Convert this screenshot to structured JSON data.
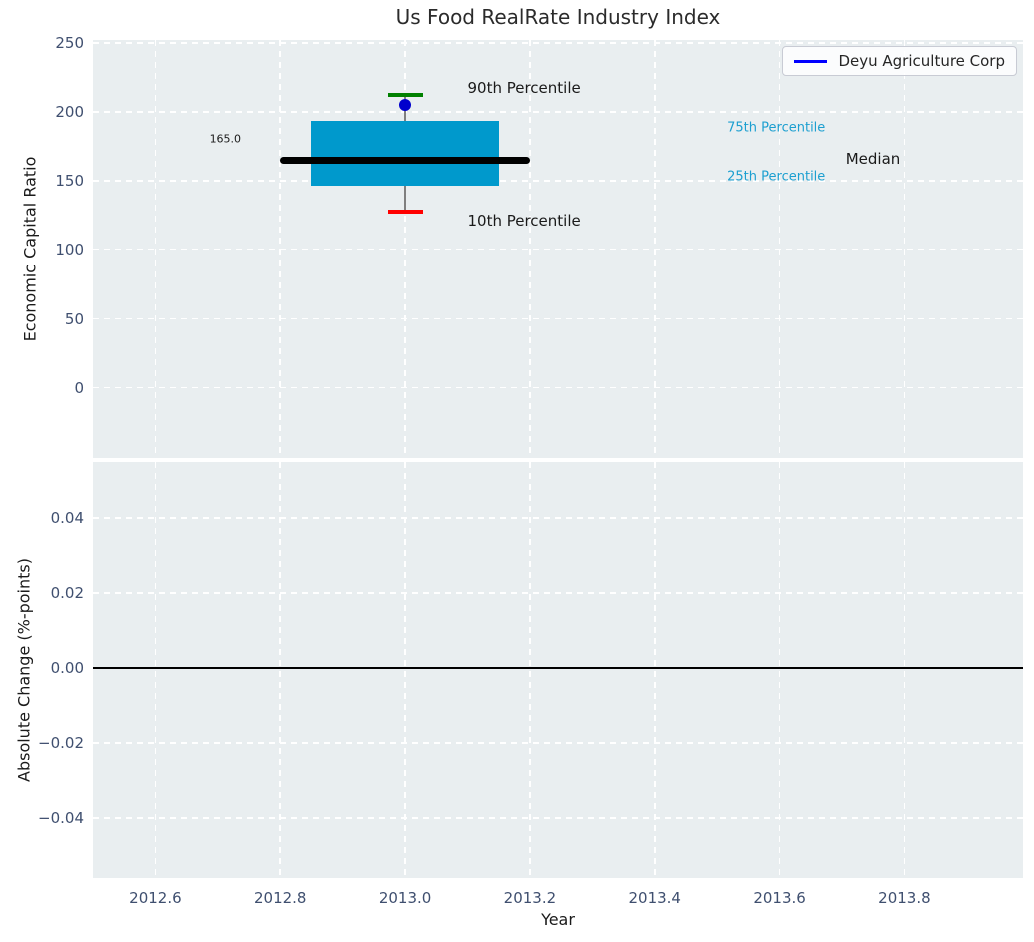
{
  "title": "Us Food RealRate Industry Index",
  "legend": {
    "label": "Deyu Agriculture Corp",
    "line_color": "#0000ff"
  },
  "styles": {
    "axes_bg": "#e9eef0",
    "grid_color": "#ffffff",
    "tick_color": "#3f4f6f",
    "box_fill": "#0099cc",
    "median_color": "#000000",
    "whisker_color": "#7f7f7f",
    "p90_cap_color": "#008000",
    "p10_cap_color": "#ff0000",
    "point_color": "#0000cd",
    "percentile_text_color": "#1c9fd0",
    "text_color": "#1a1a1a",
    "zero_line_color": "#000000"
  },
  "chart_data": [
    {
      "type": "box",
      "title": "Us Food RealRate Industry Index",
      "ylabel": "Economic Capital Ratio",
      "xlim": [
        2012.5,
        2013.99
      ],
      "ylim": [
        -51,
        252
      ],
      "yticks": [
        0,
        50,
        100,
        150,
        200,
        250
      ],
      "ytick_labels": [
        "0",
        "50",
        "100",
        "150",
        "200",
        "250"
      ],
      "grid": true,
      "legend_position": "upper right",
      "series": [
        {
          "name": "Deyu Agriculture Corp",
          "x": 2013,
          "company_value": 205,
          "median": 165.0,
          "p25": 146,
          "p75": 193,
          "p10": 127,
          "p90": 212
        }
      ],
      "box_x_range": [
        2012.85,
        2013.15
      ],
      "median_x_range": [
        2012.8,
        2013.2
      ],
      "cap_half_width": 0.028,
      "annotations": [
        {
          "text": "165.0",
          "x": 2012.712,
          "y": 180,
          "size": 11,
          "color": "#1a1a1a",
          "anchor": "center",
          "name": "median-value-label"
        },
        {
          "text": "90th Percentile",
          "x": 2013.1,
          "y": 217,
          "size": 15,
          "color": "#1a1a1a",
          "anchor": "left",
          "name": "p90-annotation"
        },
        {
          "text": "10th Percentile",
          "x": 2013.1,
          "y": 121,
          "size": 15,
          "color": "#1a1a1a",
          "anchor": "left",
          "name": "p10-annotation"
        },
        {
          "text": "75th Percentile",
          "x": 2013.516,
          "y": 188,
          "size": 13,
          "color": "#1c9fd0",
          "anchor": "left",
          "name": "p75-annotation"
        },
        {
          "text": "25th Percentile",
          "x": 2013.516,
          "y": 153,
          "size": 13,
          "color": "#1c9fd0",
          "anchor": "left",
          "name": "p25-annotation"
        },
        {
          "text": "Median",
          "x": 2013.706,
          "y": 166,
          "size": 15,
          "color": "#1a1a1a",
          "anchor": "left",
          "name": "median-annotation"
        }
      ]
    },
    {
      "type": "line",
      "ylabel": "Absolute Change (%-points)",
      "xlabel": "Year",
      "xlim": [
        2012.5,
        2013.99
      ],
      "ylim": [
        -0.056,
        0.055
      ],
      "yticks": [
        0.04,
        0.02,
        0.0,
        -0.02,
        -0.04
      ],
      "ytick_labels": [
        "0.04",
        "0.02",
        "0.00",
        "−0.02",
        "−0.04"
      ],
      "xticks": [
        2012.6,
        2012.8,
        2013.0,
        2013.2,
        2013.4,
        2013.6,
        2013.8
      ],
      "xtick_labels": [
        "2012.6",
        "2012.8",
        "2013.0",
        "2013.2",
        "2013.4",
        "2013.6",
        "2013.8"
      ],
      "grid": true,
      "zero_line_y": 0.0
    }
  ]
}
